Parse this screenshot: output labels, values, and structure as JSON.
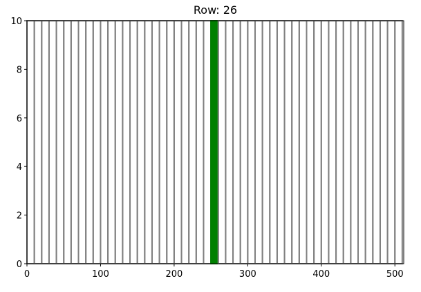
{
  "chart_data": {
    "type": "bar",
    "title": "Row: 26",
    "xlabel": "",
    "ylabel": "",
    "xlim": [
      0,
      512
    ],
    "ylim": [
      0,
      10
    ],
    "grid": false,
    "bar_width": 10,
    "x": [
      0,
      10,
      20,
      30,
      40,
      50,
      60,
      70,
      80,
      90,
      100,
      110,
      120,
      130,
      140,
      150,
      160,
      170,
      180,
      190,
      200,
      210,
      220,
      230,
      240,
      250,
      260,
      270,
      280,
      290,
      300,
      310,
      320,
      330,
      340,
      350,
      360,
      370,
      380,
      390,
      400,
      410,
      420,
      430,
      440,
      450,
      460,
      470,
      480,
      490,
      500
    ],
    "values": [
      10,
      10,
      10,
      10,
      10,
      10,
      10,
      10,
      10,
      10,
      10,
      10,
      10,
      10,
      10,
      10,
      10,
      10,
      10,
      10,
      10,
      10,
      10,
      10,
      10,
      10,
      10,
      10,
      10,
      10,
      10,
      10,
      10,
      10,
      10,
      10,
      10,
      10,
      10,
      10,
      10,
      10,
      10,
      10,
      10,
      10,
      10,
      10,
      10,
      10,
      10
    ],
    "highlight_index": 25,
    "colors": {
      "bar_edge": "#808080",
      "highlight": "#008000",
      "axis": "#000000"
    },
    "xticks": [
      {
        "value": 0,
        "label": "0"
      },
      {
        "value": 100,
        "label": "100"
      },
      {
        "value": 200,
        "label": "200"
      },
      {
        "value": 300,
        "label": "300"
      },
      {
        "value": 400,
        "label": "400"
      },
      {
        "value": 500,
        "label": "500"
      }
    ],
    "yticks": [
      {
        "value": 0,
        "label": "0"
      },
      {
        "value": 2,
        "label": "2"
      },
      {
        "value": 4,
        "label": "4"
      },
      {
        "value": 6,
        "label": "6"
      },
      {
        "value": 8,
        "label": "8"
      },
      {
        "value": 10,
        "label": "10"
      }
    ]
  }
}
